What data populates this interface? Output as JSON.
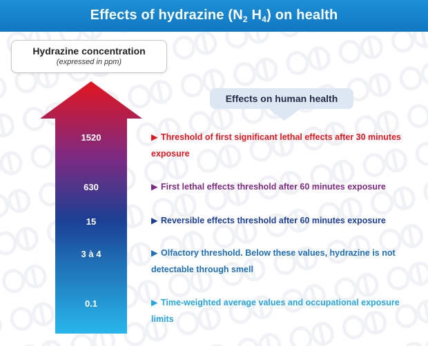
{
  "header": {
    "title_prefix": "Effects of hydrazine (N",
    "sub1": "2",
    "mid": " H",
    "sub2": "4",
    "title_suffix": ") on health"
  },
  "concentration_box": {
    "title": "Hydrazine concentration",
    "subtitle": "(expressed in ppm)"
  },
  "effects_box": {
    "title": "Effects on human health"
  },
  "levels": [
    {
      "value": "1520",
      "effect": "Threshold of first significant lethal effects after 30 minutes exposure",
      "color": "#e0161e"
    },
    {
      "value": "630",
      "effect": "First lethal effects threshold after 60 minutes exposure",
      "color": "#7d2a82"
    },
    {
      "value": "15",
      "effect": "Reversible effects threshold after 60 minutes exposure",
      "color": "#1c3f94"
    },
    {
      "value": "3 à 4",
      "effect": "Olfactory threshold. Below these values, hydrazine is not detectable through smell",
      "color": "#1f6fb4"
    },
    {
      "value": "0.1",
      "effect": "Time-weighted average values and occupational exposure limits",
      "color": "#27a5dd"
    }
  ],
  "marker_icon": "triangle-right-icon",
  "gradient": [
    "#e0161e",
    "#7d2a82",
    "#1c3f94",
    "#1f6fb4",
    "#29b6ec"
  ]
}
